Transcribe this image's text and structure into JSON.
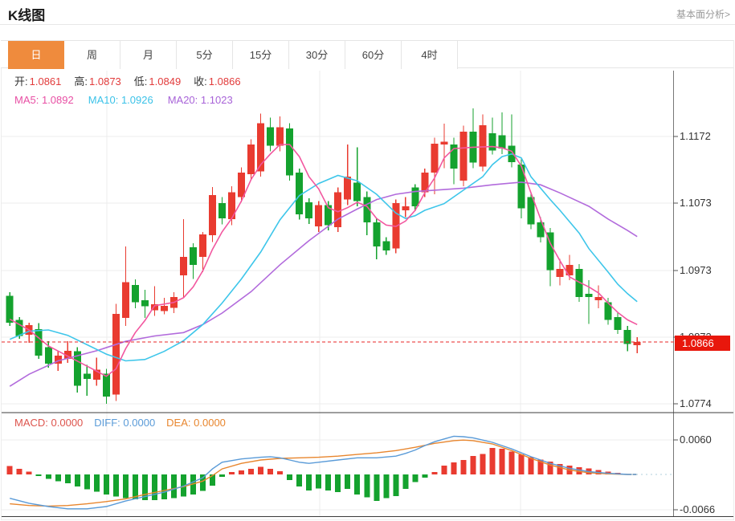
{
  "header": {
    "title": "K线图",
    "analysis_link": "基本面分析>"
  },
  "tabs": {
    "items": [
      {
        "label": "日",
        "active": true
      },
      {
        "label": "周",
        "active": false
      },
      {
        "label": "月",
        "active": false
      },
      {
        "label": "5分",
        "active": false
      },
      {
        "label": "15分",
        "active": false
      },
      {
        "label": "30分",
        "active": false
      },
      {
        "label": "60分",
        "active": false
      },
      {
        "label": "4时",
        "active": false
      }
    ]
  },
  "quote_bar": {
    "open_label": "开:",
    "open": "1.0861",
    "high_label": "高:",
    "high": "1.0873",
    "low_label": "低:",
    "low": "1.0849",
    "close_label": "收:",
    "close": "1.0866"
  },
  "ma_bar": {
    "ma5_label": "MA5:",
    "ma5": "1.0892",
    "ma10_label": "MA10:",
    "ma10": "1.0926",
    "ma20_label": "MA20:",
    "ma20": "1.1023"
  },
  "macd_bar": {
    "macd_label": "MACD:",
    "macd": "0.0000",
    "diff_label": "DIFF:",
    "diff": "0.0000",
    "dea_label": "DEA:",
    "dea": "0.0000"
  },
  "y_axis": {
    "price_labels": [
      "1.1172",
      "1.1073",
      "1.0973",
      "1.0873",
      "1.0774"
    ],
    "macd_labels": [
      "0.0060",
      "-0.0066"
    ]
  },
  "price_marker": {
    "value": "1.0866"
  },
  "colors": {
    "up": "#e93b30",
    "down": "#14a22e",
    "ma5_line": "#f2579f",
    "ma10_line": "#3ec6ea",
    "ma20_line": "#b26bdc",
    "diff_line": "#5a9bd8",
    "dea_line": "#e8862e",
    "dashed_price_line": "#ea2424",
    "price_box": "#e8170c",
    "tab_active": "#ef8b3d",
    "grid": "#ececec",
    "axis": "#777777",
    "quote_value": "#e23b3b",
    "macd_tail_dots": "#ccdfe8"
  },
  "chart_data": {
    "type": "candlestick+macd",
    "title": "K线图",
    "period_selected": "日",
    "legend": [
      "MA5",
      "MA10",
      "MA20",
      "MACD",
      "DIFF",
      "DEA"
    ],
    "ohlc_current": {
      "open": 1.0861,
      "high": 1.0873,
      "low": 1.0849,
      "close": 1.0866
    },
    "ma_current": {
      "ma5": 1.0892,
      "ma10": 1.0926,
      "ma20": 1.1023
    },
    "macd_current": {
      "macd": 0.0,
      "diff": 0.0,
      "dea": 0.0
    },
    "last_price": 1.0866,
    "y_axis_ticks": [
      1.1172,
      1.1073,
      1.0973,
      1.0873,
      1.0774
    ],
    "macd_axis_ticks": [
      0.006,
      -0.0066
    ],
    "grid": true,
    "candles": [
      [
        1.0935,
        1.094,
        1.089,
        1.0895
      ],
      [
        1.0899,
        1.0903,
        1.0871,
        1.0875
      ],
      [
        1.0877,
        1.0895,
        1.0865,
        1.0891
      ],
      [
        1.0885,
        1.0894,
        1.0841,
        1.0846
      ],
      [
        1.0858,
        1.0867,
        1.0828,
        1.0834
      ],
      [
        1.0834,
        1.0852,
        1.0823,
        1.0846
      ],
      [
        1.0841,
        1.0867,
        1.0835,
        1.0853
      ],
      [
        1.0852,
        1.0858,
        1.0791,
        1.0801
      ],
      [
        1.0819,
        1.0832,
        1.0786,
        1.0811
      ],
      [
        1.081,
        1.0843,
        1.0801,
        1.0825
      ],
      [
        1.0819,
        1.0826,
        1.0774,
        1.0785
      ],
      [
        1.0788,
        1.0923,
        1.0778,
        1.0908
      ],
      [
        1.0902,
        1.1008,
        1.089,
        1.0955
      ],
      [
        1.0951,
        1.0959,
        1.0916,
        1.0925
      ],
      [
        1.0928,
        1.0944,
        1.0902,
        1.0919
      ],
      [
        1.0913,
        1.0949,
        1.0905,
        1.0922
      ],
      [
        1.0912,
        1.0932,
        1.0907,
        1.092
      ],
      [
        1.0917,
        1.094,
        1.0909,
        1.0933
      ],
      [
        1.0965,
        1.1049,
        1.0933,
        1.0993
      ],
      [
        1.1007,
        1.1013,
        1.096,
        1.0981
      ],
      [
        1.0993,
        1.103,
        1.097,
        1.1026
      ],
      [
        1.1025,
        1.1097,
        1.1015,
        1.1085
      ],
      [
        1.1073,
        1.1082,
        1.1041,
        1.105
      ],
      [
        1.1049,
        1.1098,
        1.104,
        1.1089
      ],
      [
        1.1082,
        1.1126,
        1.1074,
        1.1118
      ],
      [
        1.1116,
        1.1168,
        1.1108,
        1.116
      ],
      [
        1.112,
        1.1206,
        1.1112,
        1.1192
      ],
      [
        1.1186,
        1.12,
        1.115,
        1.1158
      ],
      [
        1.1158,
        1.1202,
        1.115,
        1.1186
      ],
      [
        1.1184,
        1.1192,
        1.1106,
        1.1114
      ],
      [
        1.1118,
        1.1124,
        1.1048,
        1.1056
      ],
      [
        1.1074,
        1.108,
        1.1042,
        1.105
      ],
      [
        1.1038,
        1.1076,
        1.103,
        1.107
      ],
      [
        1.107,
        1.1076,
        1.1032,
        1.104
      ],
      [
        1.1037,
        1.1096,
        1.103,
        1.1089
      ],
      [
        1.1078,
        1.116,
        1.107,
        1.1112
      ],
      [
        1.1103,
        1.1156,
        1.1068,
        1.1076
      ],
      [
        1.1082,
        1.109,
        1.1025,
        1.1044
      ],
      [
        1.1044,
        1.105,
        1.0989,
        1.1008
      ],
      [
        1.1016,
        1.1022,
        1.0996,
        1.1002
      ],
      [
        1.1005,
        1.1078,
        1.0998,
        1.1073
      ],
      [
        1.1062,
        1.1082,
        1.1052,
        1.1068
      ],
      [
        1.1096,
        1.1101,
        1.1061,
        1.1068
      ],
      [
        1.1089,
        1.1124,
        1.1082,
        1.1118
      ],
      [
        1.1118,
        1.117,
        1.1086,
        1.1161
      ],
      [
        1.116,
        1.1191,
        1.1125,
        1.1164
      ],
      [
        1.116,
        1.117,
        1.1101,
        1.1124
      ],
      [
        1.1106,
        1.1188,
        1.1098,
        1.1179
      ],
      [
        1.1179,
        1.1214,
        1.1125,
        1.1133
      ],
      [
        1.1127,
        1.1205,
        1.112,
        1.1189
      ],
      [
        1.1177,
        1.12,
        1.1145,
        1.1151
      ],
      [
        1.1174,
        1.1208,
        1.1146,
        1.1154
      ],
      [
        1.1158,
        1.1205,
        1.1126,
        1.1134
      ],
      [
        1.113,
        1.1138,
        1.105,
        1.1065
      ],
      [
        1.1082,
        1.1088,
        1.1034,
        1.1041
      ],
      [
        1.1044,
        1.1052,
        1.1014,
        1.1022
      ],
      [
        1.1029,
        1.1036,
        1.0949,
        1.0973
      ],
      [
        1.0963,
        1.099,
        1.095,
        1.0975
      ],
      [
        1.0965,
        1.0996,
        1.0958,
        1.0981
      ],
      [
        1.0975,
        1.0982,
        1.0926,
        1.0933
      ],
      [
        1.0938,
        1.0958,
        1.0893,
        1.0933
      ],
      [
        1.0928,
        1.095,
        1.0916,
        1.0933
      ],
      [
        1.0925,
        1.0932,
        1.0892,
        1.0899
      ],
      [
        1.0903,
        1.091,
        1.0878,
        1.0884
      ],
      [
        1.0884,
        1.089,
        1.0852,
        1.0863
      ],
      [
        1.0861,
        1.0873,
        1.0849,
        1.0866
      ]
    ],
    "ma5_points": [
      [
        0,
        1.09
      ],
      [
        2,
        1.0884
      ],
      [
        4,
        1.086
      ],
      [
        6,
        1.0845
      ],
      [
        8,
        1.083
      ],
      [
        10,
        1.0815
      ],
      [
        11,
        1.0826
      ],
      [
        12,
        1.0856
      ],
      [
        13,
        1.088
      ],
      [
        14,
        1.0898
      ],
      [
        15,
        1.092
      ],
      [
        17,
        1.0925
      ],
      [
        18,
        1.0932
      ],
      [
        19,
        1.0948
      ],
      [
        20,
        1.0972
      ],
      [
        21,
        1.1004
      ],
      [
        22,
        1.103
      ],
      [
        23,
        1.105
      ],
      [
        24,
        1.1076
      ],
      [
        25,
        1.1108
      ],
      [
        26,
        1.113
      ],
      [
        27,
        1.1146
      ],
      [
        28,
        1.116
      ],
      [
        29,
        1.116
      ],
      [
        30,
        1.1142
      ],
      [
        31,
        1.1112
      ],
      [
        32,
        1.1094
      ],
      [
        33,
        1.1066
      ],
      [
        34,
        1.106
      ],
      [
        35,
        1.1066
      ],
      [
        36,
        1.1074
      ],
      [
        37,
        1.1068
      ],
      [
        38,
        1.105
      ],
      [
        39,
        1.104
      ],
      [
        40,
        1.1038
      ],
      [
        41,
        1.1046
      ],
      [
        42,
        1.1062
      ],
      [
        43,
        1.1088
      ],
      [
        44,
        1.111
      ],
      [
        45,
        1.114
      ],
      [
        46,
        1.1154
      ],
      [
        48,
        1.1156
      ],
      [
        50,
        1.1157
      ],
      [
        51,
        1.1155
      ],
      [
        52,
        1.115
      ],
      [
        53,
        1.1128
      ],
      [
        54,
        1.1088
      ],
      [
        55,
        1.1049
      ],
      [
        56,
        1.1013
      ],
      [
        57,
        1.0987
      ],
      [
        58,
        1.0963
      ],
      [
        59,
        1.0955
      ],
      [
        60,
        1.0948
      ],
      [
        61,
        1.0939
      ],
      [
        62,
        1.0924
      ],
      [
        63,
        1.091
      ],
      [
        64,
        1.0899
      ],
      [
        65,
        1.0892
      ]
    ],
    "ma10_points": [
      [
        0,
        1.087
      ],
      [
        2,
        1.0882
      ],
      [
        4,
        1.0884
      ],
      [
        6,
        1.0876
      ],
      [
        8,
        1.0862
      ],
      [
        10,
        1.0848
      ],
      [
        12,
        1.0838
      ],
      [
        14,
        1.084
      ],
      [
        16,
        1.0852
      ],
      [
        18,
        1.0868
      ],
      [
        20,
        1.0892
      ],
      [
        22,
        1.0924
      ],
      [
        24,
        1.096
      ],
      [
        26,
        1.1
      ],
      [
        28,
        1.1048
      ],
      [
        30,
        1.1084
      ],
      [
        32,
        1.1102
      ],
      [
        34,
        1.1114
      ],
      [
        36,
        1.1106
      ],
      [
        37,
        1.1096
      ],
      [
        38,
        1.1086
      ],
      [
        39,
        1.1072
      ],
      [
        40,
        1.1058
      ],
      [
        41,
        1.105
      ],
      [
        42,
        1.1054
      ],
      [
        43,
        1.1062
      ],
      [
        45,
        1.1072
      ],
      [
        47,
        1.1092
      ],
      [
        49,
        1.1112
      ],
      [
        50,
        1.113
      ],
      [
        51,
        1.1142
      ],
      [
        52,
        1.1146
      ],
      [
        53,
        1.114
      ],
      [
        54,
        1.1112
      ],
      [
        56,
        1.1078
      ],
      [
        57,
        1.1062
      ],
      [
        59,
        1.1028
      ],
      [
        60,
        1.1005
      ],
      [
        62,
        1.097
      ],
      [
        63,
        1.0952
      ],
      [
        64,
        1.0938
      ],
      [
        65,
        1.0926
      ]
    ],
    "ma20_points": [
      [
        0,
        1.08
      ],
      [
        2,
        1.0818
      ],
      [
        5,
        1.0838
      ],
      [
        9,
        1.0853
      ],
      [
        12,
        1.0867
      ],
      [
        15,
        1.0875
      ],
      [
        18,
        1.088
      ],
      [
        20,
        1.0892
      ],
      [
        22,
        1.0909
      ],
      [
        25,
        1.0941
      ],
      [
        28,
        1.0981
      ],
      [
        31,
        1.1017
      ],
      [
        34,
        1.1049
      ],
      [
        36,
        1.1064
      ],
      [
        38,
        1.1078
      ],
      [
        40,
        1.1086
      ],
      [
        42,
        1.109
      ],
      [
        44,
        1.1092
      ],
      [
        47,
        1.1095
      ],
      [
        50,
        1.11
      ],
      [
        53,
        1.1104
      ],
      [
        55,
        1.11
      ],
      [
        57,
        1.1088
      ],
      [
        60,
        1.1068
      ],
      [
        62,
        1.1049
      ],
      [
        64,
        1.1032
      ],
      [
        65,
        1.1023
      ]
    ],
    "macd": {
      "hist": [
        0.0015,
        0.001,
        0.0005,
        -0.0003,
        -0.0008,
        -0.0012,
        -0.0016,
        -0.0022,
        -0.0027,
        -0.0031,
        -0.0036,
        -0.004,
        -0.0043,
        -0.0045,
        -0.0046,
        -0.0046,
        -0.0045,
        -0.0043,
        -0.004,
        -0.0036,
        -0.003,
        -0.002,
        -0.0004,
        0.0004,
        0.0007,
        0.001,
        0.0014,
        0.001,
        0.0006,
        -0.001,
        -0.0022,
        -0.0029,
        -0.0025,
        -0.0029,
        -0.0032,
        -0.0026,
        -0.0036,
        -0.0041,
        -0.0048,
        -0.0043,
        -0.0039,
        -0.0026,
        -0.0014,
        -0.0006,
        0.0004,
        0.0016,
        0.0022,
        0.0026,
        0.0033,
        0.0037,
        0.0048,
        0.0046,
        0.0041,
        0.0036,
        0.0031,
        0.0027,
        0.0023,
        0.0019,
        0.0016,
        0.0013,
        0.0011,
        0.0008,
        0.0005,
        0.0003,
        0.0001,
        0.0
      ],
      "diff_points": [
        [
          0,
          -0.0043
        ],
        [
          2,
          -0.0052
        ],
        [
          4,
          -0.0058
        ],
        [
          6,
          -0.0062
        ],
        [
          8,
          -0.0062
        ],
        [
          10,
          -0.0058
        ],
        [
          12,
          -0.0048
        ],
        [
          14,
          -0.004
        ],
        [
          16,
          -0.0032
        ],
        [
          18,
          -0.0021
        ],
        [
          20,
          -0.0006
        ],
        [
          21,
          0.001
        ],
        [
          22,
          0.0022
        ],
        [
          24,
          0.0028
        ],
        [
          26,
          0.0031
        ],
        [
          27,
          0.0032
        ],
        [
          28,
          0.003
        ],
        [
          29,
          0.0026
        ],
        [
          30,
          0.0022
        ],
        [
          31,
          0.002
        ],
        [
          32,
          0.0022
        ],
        [
          34,
          0.0026
        ],
        [
          36,
          0.003
        ],
        [
          38,
          0.003
        ],
        [
          40,
          0.0033
        ],
        [
          41,
          0.0038
        ],
        [
          42,
          0.0044
        ],
        [
          43,
          0.0052
        ],
        [
          44,
          0.0059
        ],
        [
          45,
          0.0064
        ],
        [
          46,
          0.0069
        ],
        [
          47,
          0.0068
        ],
        [
          48,
          0.0066
        ],
        [
          49,
          0.0062
        ],
        [
          50,
          0.0058
        ],
        [
          52,
          0.0046
        ],
        [
          54,
          0.0032
        ],
        [
          56,
          0.002
        ],
        [
          58,
          0.0011
        ],
        [
          60,
          0.0005
        ],
        [
          62,
          0.0002
        ],
        [
          64,
          0.0
        ],
        [
          65,
          0.0
        ]
      ],
      "dea_points": [
        [
          0,
          -0.0053
        ],
        [
          2,
          -0.0056
        ],
        [
          4,
          -0.0057
        ],
        [
          6,
          -0.0056
        ],
        [
          8,
          -0.0053
        ],
        [
          10,
          -0.0049
        ],
        [
          12,
          -0.0044
        ],
        [
          14,
          -0.0036
        ],
        [
          16,
          -0.0029
        ],
        [
          18,
          -0.0022
        ],
        [
          20,
          -0.0012
        ],
        [
          21,
          -0.0002
        ],
        [
          22,
          0.001
        ],
        [
          24,
          0.002
        ],
        [
          26,
          0.0026
        ],
        [
          28,
          0.0029
        ],
        [
          30,
          0.003
        ],
        [
          32,
          0.0031
        ],
        [
          34,
          0.0033
        ],
        [
          36,
          0.0036
        ],
        [
          38,
          0.0039
        ],
        [
          40,
          0.0043
        ],
        [
          42,
          0.0049
        ],
        [
          44,
          0.0056
        ],
        [
          46,
          0.0061
        ],
        [
          47,
          0.0062
        ],
        [
          48,
          0.0061
        ],
        [
          50,
          0.0055
        ],
        [
          52,
          0.0043
        ],
        [
          54,
          0.0029
        ],
        [
          56,
          0.0017
        ],
        [
          58,
          0.0008
        ],
        [
          60,
          0.0003
        ],
        [
          62,
          0.0001
        ],
        [
          64,
          0.0
        ],
        [
          65,
          0.0
        ]
      ]
    }
  }
}
